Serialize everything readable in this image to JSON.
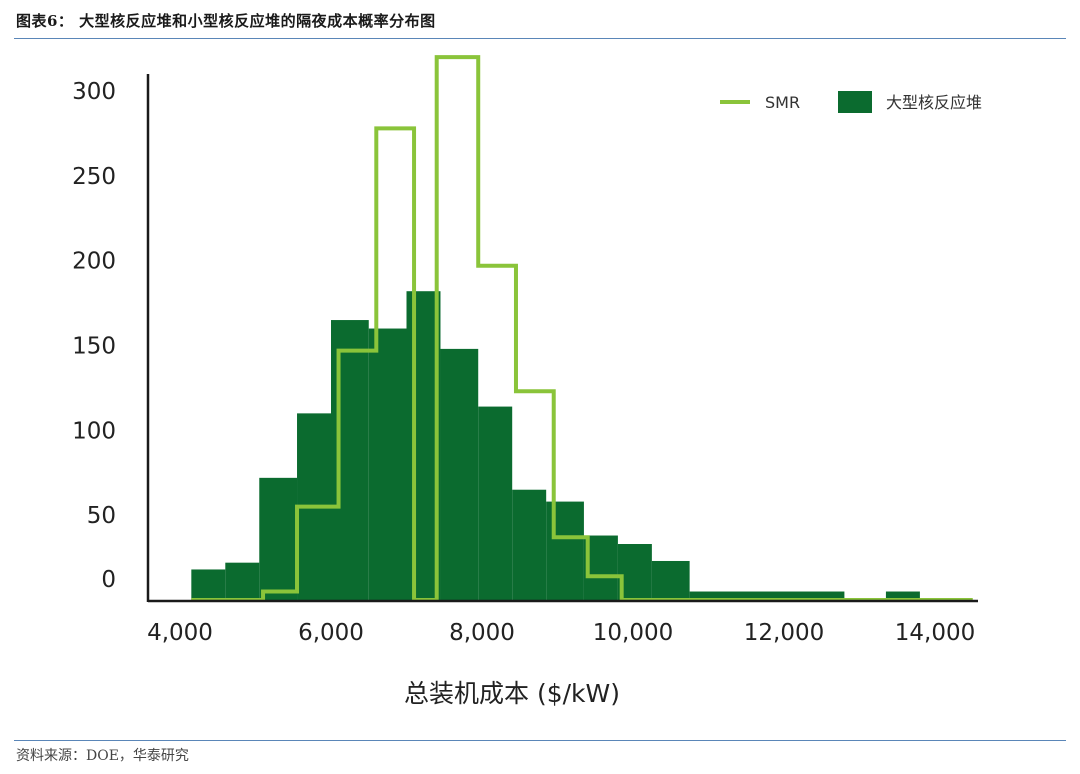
{
  "header": {
    "title": "图表6： 大型核反应堆和小型核反应堆的隔夜成本概率分布图"
  },
  "footer": {
    "source": "资料来源：DOE，华泰研究"
  },
  "colors": {
    "smr": "#8ac43a",
    "large": "#0b6b2f",
    "axis": "#1a1a1a"
  },
  "chart_data": {
    "type": "histogram",
    "title": "",
    "xlabel": "总装机成本 ($/kW)",
    "ylabel": "",
    "xlim": [
      4000,
      14500
    ],
    "ylim": [
      0,
      320
    ],
    "x_ticks": [
      4000,
      6000,
      8000,
      10000,
      12000,
      14000
    ],
    "x_tick_labels": [
      "4,000",
      "6,000",
      "8,000",
      "10,000",
      "12,000",
      "14,000"
    ],
    "y_ticks": [
      0,
      50,
      100,
      150,
      200,
      250,
      300
    ],
    "y_tick_labels": [
      "0",
      "50",
      "100",
      "150",
      "200",
      "250",
      "300"
    ],
    "legend": {
      "placement": "top-right",
      "entries": [
        "SMR",
        "大型核反应堆"
      ]
    },
    "series": [
      {
        "name": "大型核反应堆",
        "style": "filled-bars",
        "bins": [
          {
            "x0": 4150,
            "x1": 4600,
            "y": 18
          },
          {
            "x0": 4600,
            "x1": 5050,
            "y": 22
          },
          {
            "x0": 5050,
            "x1": 5550,
            "y": 72
          },
          {
            "x0": 5550,
            "x1": 6000,
            "y": 110
          },
          {
            "x0": 6000,
            "x1": 6500,
            "y": 165
          },
          {
            "x0": 6500,
            "x1": 7000,
            "y": 160
          },
          {
            "x0": 7000,
            "x1": 7450,
            "y": 182
          },
          {
            "x0": 7450,
            "x1": 7950,
            "y": 148
          },
          {
            "x0": 7950,
            "x1": 8400,
            "y": 114
          },
          {
            "x0": 8400,
            "x1": 8850,
            "y": 65
          },
          {
            "x0": 8850,
            "x1": 9350,
            "y": 58
          },
          {
            "x0": 9350,
            "x1": 9800,
            "y": 38
          },
          {
            "x0": 9800,
            "x1": 10250,
            "y": 33
          },
          {
            "x0": 10250,
            "x1": 10750,
            "y": 23
          },
          {
            "x0": 10750,
            "x1": 12800,
            "y": 5
          },
          {
            "x0": 13350,
            "x1": 13800,
            "y": 5
          }
        ]
      },
      {
        "name": "SMR",
        "style": "step-line",
        "steps": [
          {
            "x0": 4150,
            "x1": 5100,
            "y": 0
          },
          {
            "x0": 5100,
            "x1": 5550,
            "y": 5
          },
          {
            "x0": 5550,
            "x1": 6100,
            "y": 55
          },
          {
            "x0": 6100,
            "x1": 6600,
            "y": 147
          },
          {
            "x0": 6600,
            "x1": 7100,
            "y": 278
          },
          {
            "x0": 7100,
            "x1": 7400,
            "y": 0
          },
          {
            "x0": 7400,
            "x1": 7950,
            "y": 320
          },
          {
            "x0": 7950,
            "x1": 8450,
            "y": 197
          },
          {
            "x0": 8450,
            "x1": 8950,
            "y": 123
          },
          {
            "x0": 8950,
            "x1": 9400,
            "y": 37
          },
          {
            "x0": 9400,
            "x1": 9850,
            "y": 14
          },
          {
            "x0": 9850,
            "x1": 14500,
            "y": 0
          }
        ]
      }
    ]
  }
}
